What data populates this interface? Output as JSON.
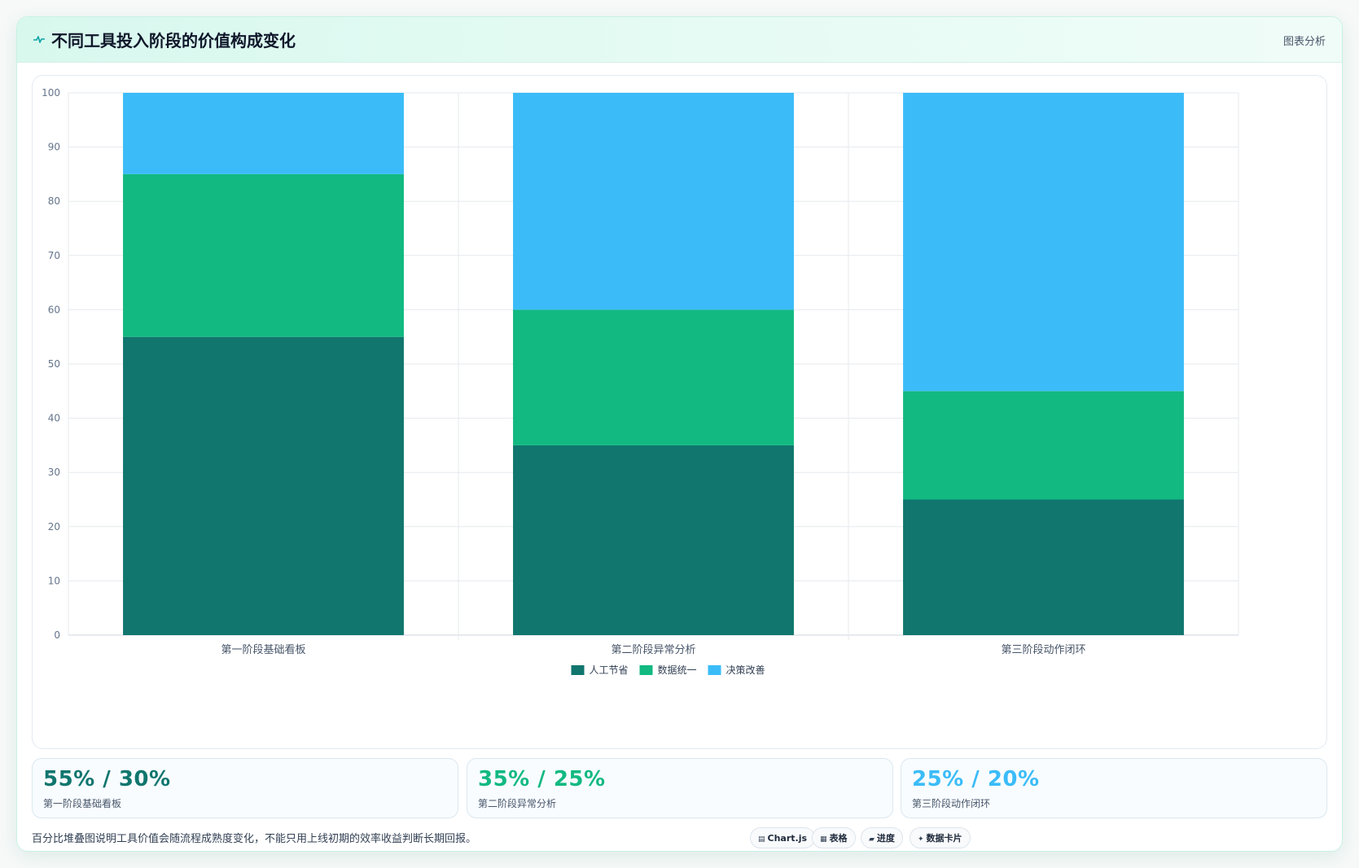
{
  "header": {
    "title": "不同工具投入阶段的价值构成变化",
    "tag": "图表分析",
    "icon": "pulse-icon"
  },
  "colors": {
    "manual": "#10766e",
    "unify": "#12b981",
    "decision": "#3bbcf8"
  },
  "chart_data": {
    "type": "bar",
    "stacked": true,
    "categories": [
      "第一阶段基础看板",
      "第二阶段异常分析",
      "第三阶段动作闭环"
    ],
    "series": [
      {
        "name": "人工节省",
        "values": [
          55,
          35,
          25
        ],
        "color": "#10766e"
      },
      {
        "name": "数据统一",
        "values": [
          30,
          25,
          20
        ],
        "color": "#12b981"
      },
      {
        "name": "决策改善",
        "values": [
          15,
          40,
          55
        ],
        "color": "#3bbcf8"
      }
    ],
    "ylim": [
      0,
      100
    ],
    "yticks": [
      0,
      10,
      20,
      30,
      40,
      50,
      60,
      70,
      80,
      90,
      100
    ],
    "grid": true,
    "legend": "bottom-center"
  },
  "stats": [
    {
      "value": "55% / 30%",
      "label": "第一阶段基础看板",
      "color": "#10766e"
    },
    {
      "value": "35% / 25%",
      "label": "第二阶段异常分析",
      "color": "#12b981"
    },
    {
      "value": "25% / 20%",
      "label": "第三阶段动作闭环",
      "color": "#3bbcf8"
    }
  ],
  "footer": {
    "note": "百分比堆叠图说明工具价值会随流程成熟度变化，不能只用上线初期的效率收益判断长期回报。"
  },
  "pills": [
    {
      "icon": "▤",
      "icon_name": "chart-icon",
      "label": "Chart.js"
    },
    {
      "icon": "▦",
      "icon_name": "table-icon",
      "label": "表格"
    },
    {
      "icon": "▰",
      "icon_name": "progress-icon",
      "label": "进度"
    },
    {
      "icon": "✦",
      "icon_name": "sparkle-icon",
      "label": "数据卡片"
    }
  ]
}
